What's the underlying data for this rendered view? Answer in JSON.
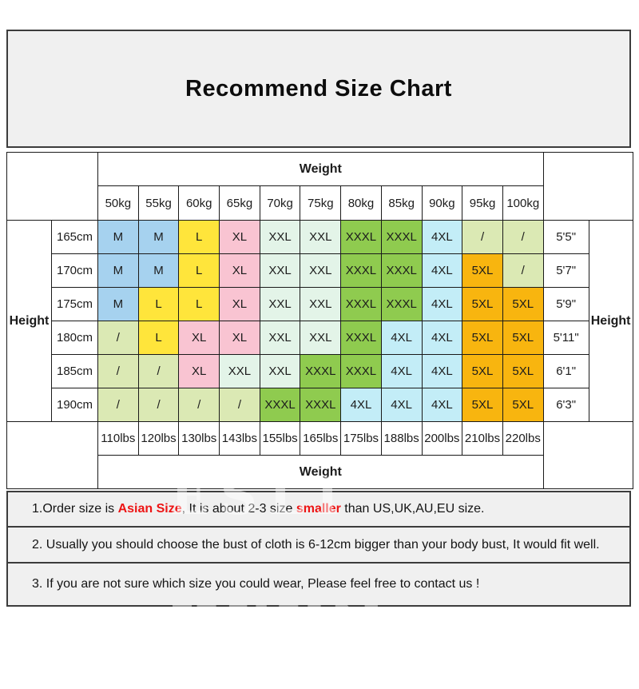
{
  "title": "Recommend Size Chart",
  "watermark": "ESLI HYUN",
  "table": {
    "weight_top_label": "Weight",
    "weight_bottom_label": "Weight",
    "height_left_label": "Height",
    "height_right_label": "Height",
    "kg_headers": [
      "50kg",
      "55kg",
      "60kg",
      "65kg",
      "70kg",
      "75kg",
      "80kg",
      "85kg",
      "90kg",
      "95kg",
      "100kg"
    ],
    "lbs_footers": [
      "110lbs",
      "120lbs",
      "130lbs",
      "143lbs",
      "155lbs",
      "165lbs",
      "175lbs",
      "188lbs",
      "200lbs",
      "210lbs",
      "220lbs"
    ],
    "rows": [
      {
        "cm": "165cm",
        "ft": "5'5\"",
        "sizes": [
          "M",
          "M",
          "L",
          "XL",
          "XXL",
          "XXL",
          "XXXL",
          "XXXL",
          "4XL",
          "/",
          "/"
        ]
      },
      {
        "cm": "170cm",
        "ft": "5'7\"",
        "sizes": [
          "M",
          "M",
          "L",
          "XL",
          "XXL",
          "XXL",
          "XXXL",
          "XXXL",
          "4XL",
          "5XL",
          "/"
        ]
      },
      {
        "cm": "175cm",
        "ft": "5'9\"",
        "sizes": [
          "M",
          "L",
          "L",
          "XL",
          "XXL",
          "XXL",
          "XXXL",
          "XXXL",
          "4XL",
          "5XL",
          "5XL"
        ]
      },
      {
        "cm": "180cm",
        "ft": "5'11\"",
        "sizes": [
          "/",
          "L",
          "XL",
          "XL",
          "XXL",
          "XXL",
          "XXXL",
          "4XL",
          "4XL",
          "5XL",
          "5XL"
        ]
      },
      {
        "cm": "185cm",
        "ft": "6'1\"",
        "sizes": [
          "/",
          "/",
          "XL",
          "XXL",
          "XXL",
          "XXXL",
          "XXXL",
          "4XL",
          "4XL",
          "5XL",
          "5XL"
        ]
      },
      {
        "cm": "190cm",
        "ft": "6'3\"",
        "sizes": [
          "/",
          "/",
          "/",
          "/",
          "XXXL",
          "XXXL",
          "4XL",
          "4XL",
          "4XL",
          "5XL",
          "5XL"
        ]
      }
    ]
  },
  "size_colors": {
    "M": "#a6d2ef",
    "L": "#ffe53b",
    "XL": "#f9c4d2",
    "XXL": "#e3f4e8",
    "XXXL": "#8fcb4f",
    "4XL": "#c3edf7",
    "5XL": "#f8b50f",
    "/": "#dbe9b4"
  },
  "notes": [
    {
      "segments": [
        {
          "text": "1.Order size is ",
          "red": false
        },
        {
          "text": "Asian Size",
          "red": true
        },
        {
          "text": ", It is about 2-3 size ",
          "red": false
        },
        {
          "text": "smaller",
          "red": true
        },
        {
          "text": " than US,UK,AU,EU size.",
          "red": false
        }
      ]
    },
    {
      "segments": [
        {
          "text": "2. Usually you should choose the bust of cloth is 6-12cm bigger than your body bust, It would fit well.",
          "red": false
        }
      ]
    },
    {
      "segments": [
        {
          "text": "3. If you are not sure which size you could wear, Please feel free to contact us !",
          "red": false
        }
      ]
    }
  ]
}
